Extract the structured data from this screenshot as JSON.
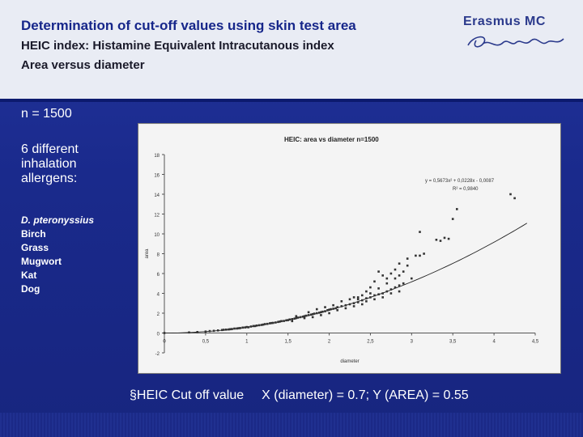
{
  "header": {
    "title": "Determination of cut-off values  using skin test area",
    "subtitle1": "HEIC index: Histamine Equivalent Intracutanous index",
    "subtitle2": "Area versus diameter",
    "logo_text": "Erasmus MC",
    "logo_script": "Ezafung"
  },
  "left": {
    "n_label": "n = 1500",
    "allergens_heading": "6 different inhalation allergens:",
    "allergens": [
      "D. pteronyssius",
      "Birch",
      "Grass",
      "Mugwort",
      "Kat",
      "Dog"
    ]
  },
  "footer": {
    "bullet": "§",
    "part1": "HEIC Cut off value",
    "part2": "X (diameter) = 0.7; Y (AREA) = 0.55"
  },
  "colors": {
    "background": "#1a2a8c",
    "header_band": "#e9ecf4",
    "title": "#16268a",
    "point": "#333333"
  },
  "chart_data": {
    "type": "scatter",
    "title": "HEIC: area vs diameter n=1500",
    "xlabel": "diameter",
    "ylabel": "area",
    "xlim": [
      0,
      4.5
    ],
    "ylim": [
      -2,
      18
    ],
    "xticks": [
      "0",
      "0,5",
      "1",
      "1,5",
      "2",
      "2,5",
      "3",
      "3,5",
      "4",
      "4,5"
    ],
    "yticks": [
      "-2",
      "0",
      "2",
      "4",
      "6",
      "8",
      "10",
      "12",
      "14",
      "16",
      "18"
    ],
    "trendline": {
      "equation": "y = 0,5673x² + 0,0228x - 0,0087",
      "r2": "R² = 0,9840",
      "a": 0.5673,
      "b": 0.0228,
      "c": -0.0087
    },
    "grid": false,
    "legend": "none",
    "points": [
      [
        0.0,
        0.0
      ],
      [
        0.3,
        0.06
      ],
      [
        0.4,
        0.1
      ],
      [
        0.5,
        0.15
      ],
      [
        0.55,
        0.2
      ],
      [
        0.6,
        0.22
      ],
      [
        0.65,
        0.26
      ],
      [
        0.7,
        0.3
      ],
      [
        0.72,
        0.33
      ],
      [
        0.75,
        0.34
      ],
      [
        0.78,
        0.36
      ],
      [
        0.8,
        0.38
      ],
      [
        0.82,
        0.4
      ],
      [
        0.85,
        0.45
      ],
      [
        0.88,
        0.46
      ],
      [
        0.9,
        0.48
      ],
      [
        0.92,
        0.5
      ],
      [
        0.95,
        0.55
      ],
      [
        0.98,
        0.56
      ],
      [
        1.0,
        0.6
      ],
      [
        1.02,
        0.58
      ],
      [
        1.05,
        0.65
      ],
      [
        1.08,
        0.7
      ],
      [
        1.1,
        0.7
      ],
      [
        1.12,
        0.75
      ],
      [
        1.15,
        0.78
      ],
      [
        1.18,
        0.82
      ],
      [
        1.2,
        0.85
      ],
      [
        1.22,
        0.9
      ],
      [
        1.25,
        0.92
      ],
      [
        1.28,
        0.98
      ],
      [
        1.3,
        1.0
      ],
      [
        1.32,
        1.02
      ],
      [
        1.35,
        1.06
      ],
      [
        1.38,
        1.12
      ],
      [
        1.4,
        1.15
      ],
      [
        1.42,
        1.2
      ],
      [
        1.45,
        1.22
      ],
      [
        1.48,
        1.28
      ],
      [
        1.5,
        1.3
      ],
      [
        1.52,
        1.36
      ],
      [
        1.55,
        1.4
      ],
      [
        1.58,
        1.45
      ],
      [
        1.6,
        1.5
      ],
      [
        1.62,
        1.55
      ],
      [
        1.65,
        1.6
      ],
      [
        1.68,
        1.65
      ],
      [
        1.7,
        1.7
      ],
      [
        1.72,
        1.75
      ],
      [
        1.75,
        1.8
      ],
      [
        1.78,
        1.85
      ],
      [
        1.8,
        1.9
      ],
      [
        1.82,
        1.95
      ],
      [
        1.85,
        2.0
      ],
      [
        1.88,
        2.05
      ],
      [
        1.9,
        2.1
      ],
      [
        1.92,
        2.15
      ],
      [
        1.95,
        2.2
      ],
      [
        1.98,
        2.3
      ],
      [
        2.0,
        2.35
      ],
      [
        2.02,
        2.4
      ],
      [
        2.05,
        2.45
      ],
      [
        2.08,
        2.5
      ],
      [
        2.1,
        2.6
      ],
      [
        2.15,
        2.7
      ],
      [
        2.2,
        2.8
      ],
      [
        2.25,
        2.9
      ],
      [
        2.3,
        3.0
      ],
      [
        2.35,
        3.1
      ],
      [
        2.4,
        3.3
      ],
      [
        2.45,
        3.5
      ],
      [
        2.5,
        3.6
      ],
      [
        2.55,
        3.8
      ],
      [
        2.6,
        3.9
      ],
      [
        2.65,
        4.0
      ],
      [
        2.7,
        4.2
      ],
      [
        2.75,
        4.4
      ],
      [
        2.8,
        4.6
      ],
      [
        2.85,
        4.8
      ],
      [
        2.9,
        5.0
      ],
      [
        1.55,
        1.2
      ],
      [
        1.6,
        1.7
      ],
      [
        1.7,
        1.5
      ],
      [
        1.75,
        2.1
      ],
      [
        1.8,
        1.6
      ],
      [
        1.85,
        2.4
      ],
      [
        1.9,
        1.8
      ],
      [
        1.95,
        2.6
      ],
      [
        2.0,
        2.0
      ],
      [
        2.05,
        2.8
      ],
      [
        2.1,
        2.3
      ],
      [
        2.15,
        3.2
      ],
      [
        2.2,
        2.5
      ],
      [
        2.25,
        3.4
      ],
      [
        2.3,
        2.7
      ],
      [
        2.35,
        3.6
      ],
      [
        2.4,
        2.9
      ],
      [
        2.45,
        3.2
      ],
      [
        2.5,
        4.0
      ],
      [
        2.55,
        3.4
      ],
      [
        2.6,
        4.5
      ],
      [
        2.65,
        3.6
      ],
      [
        2.7,
        5.0
      ],
      [
        2.75,
        4.0
      ],
      [
        2.8,
        5.5
      ],
      [
        2.85,
        4.2
      ],
      [
        2.6,
        6.2
      ],
      [
        2.65,
        5.8
      ],
      [
        2.7,
        5.5
      ],
      [
        2.75,
        6.0
      ],
      [
        2.8,
        6.4
      ],
      [
        2.85,
        7.0
      ],
      [
        2.9,
        6.2
      ],
      [
        2.95,
        7.5
      ],
      [
        2.55,
        5.2
      ],
      [
        2.5,
        4.6
      ],
      [
        2.45,
        4.2
      ],
      [
        2.4,
        3.8
      ],
      [
        2.35,
        3.4
      ],
      [
        2.3,
        3.6
      ],
      [
        3.0,
        5.5
      ],
      [
        3.05,
        7.8
      ],
      [
        3.1,
        7.8
      ],
      [
        3.15,
        8.0
      ],
      [
        3.1,
        10.2
      ],
      [
        3.3,
        9.4
      ],
      [
        3.35,
        9.3
      ],
      [
        3.4,
        9.6
      ],
      [
        3.5,
        11.5
      ],
      [
        3.55,
        12.5
      ],
      [
        3.45,
        9.5
      ],
      [
        4.2,
        14.0
      ],
      [
        4.25,
        13.6
      ],
      [
        2.85,
        5.8
      ],
      [
        2.95,
        6.8
      ]
    ]
  }
}
